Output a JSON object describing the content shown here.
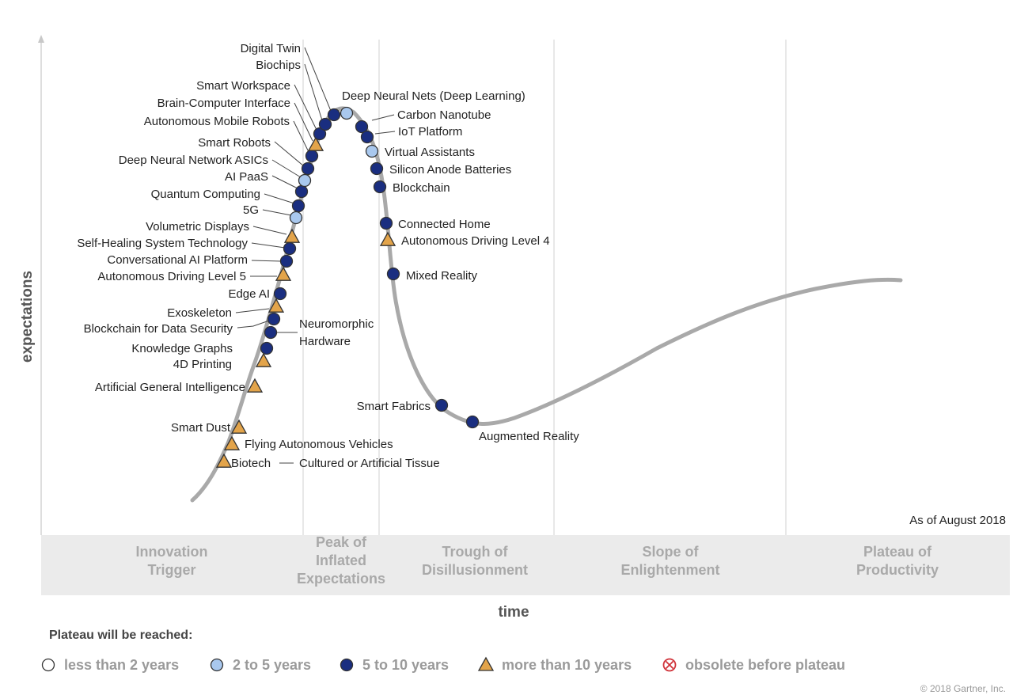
{
  "chart_data": {
    "type": "scatter",
    "ylabel": "expectations",
    "xlabel": "time",
    "as_of": "As of August 2018",
    "phases": [
      {
        "lines": [
          "Innovation",
          "Trigger"
        ]
      },
      {
        "lines": [
          "Peak of",
          "Inflated",
          "Expectations"
        ]
      },
      {
        "lines": [
          "Trough of",
          "Disillusionment"
        ]
      },
      {
        "lines": [
          "Slope of",
          "Enlightenment"
        ]
      },
      {
        "lines": [
          "Plateau of",
          "Productivity"
        ]
      }
    ],
    "legend": {
      "title": "Plateau will be reached:",
      "items": [
        {
          "key": "lt2",
          "label": "less than 2 years"
        },
        {
          "key": "2to5",
          "label": "2 to 5 years"
        },
        {
          "key": "5to10",
          "label": "5 to 10 years"
        },
        {
          "key": "gt10",
          "label": "more than 10 years"
        },
        {
          "key": "obsolete",
          "label": "obsolete before plateau"
        }
      ]
    },
    "colors": {
      "lt2": "#ffffff",
      "2to5": "#a9c8ee",
      "5to10": "#1a2e80",
      "gt10": "#e3a44a",
      "obsolete": "#d0333a",
      "curve": "#a9a9a9",
      "band": "#ebebeb"
    },
    "copyright": "© 2018 Gartner, Inc.",
    "points": [
      {
        "name": "Biotech",
        "label2": "Cultured or Artificial Tissue",
        "cat": "gt10"
      },
      {
        "name": "Flying Autonomous Vehicles",
        "cat": "gt10"
      },
      {
        "name": "Smart Dust",
        "cat": "gt10"
      },
      {
        "name": "Artificial General Intelligence",
        "cat": "gt10"
      },
      {
        "name": "4D Printing",
        "cat": "gt10"
      },
      {
        "name": "Knowledge Graphs",
        "cat": "5to10"
      },
      {
        "name": "Neuromorphic Hardware",
        "lines": [
          "Neuromorphic",
          "Hardware"
        ],
        "cat": "5to10"
      },
      {
        "name": "Blockchain for Data Security",
        "cat": "5to10"
      },
      {
        "name": "Exoskeleton",
        "cat": "gt10"
      },
      {
        "name": "Edge AI",
        "cat": "5to10"
      },
      {
        "name": "Autonomous Driving Level 5",
        "cat": "gt10"
      },
      {
        "name": "Conversational AI Platform",
        "cat": "5to10"
      },
      {
        "name": "Self-Healing System Technology",
        "cat": "5to10"
      },
      {
        "name": "Volumetric Displays",
        "cat": "gt10"
      },
      {
        "name": "5G",
        "cat": "2to5"
      },
      {
        "name": "Quantum Computing",
        "cat": "5to10"
      },
      {
        "name": "AI PaaS",
        "cat": "5to10"
      },
      {
        "name": "Deep Neural Network ASICs",
        "cat": "2to5"
      },
      {
        "name": "Smart Robots",
        "cat": "5to10"
      },
      {
        "name": "Autonomous Mobile Robots",
        "cat": "5to10"
      },
      {
        "name": "Brain-Computer Interface",
        "cat": "gt10"
      },
      {
        "name": "Smart Workspace",
        "cat": "5to10"
      },
      {
        "name": "Biochips",
        "cat": "5to10"
      },
      {
        "name": "Digital Twin",
        "cat": "5to10"
      },
      {
        "name": "Deep Neural Nets (Deep Learning)",
        "cat": "2to5"
      },
      {
        "name": "Carbon Nanotube",
        "cat": "5to10"
      },
      {
        "name": "IoT Platform",
        "cat": "5to10"
      },
      {
        "name": "Virtual Assistants",
        "cat": "2to5"
      },
      {
        "name": "Silicon Anode Batteries",
        "cat": "5to10"
      },
      {
        "name": "Blockchain",
        "cat": "5to10"
      },
      {
        "name": "Connected Home",
        "cat": "5to10"
      },
      {
        "name": "Autonomous Driving Level 4",
        "cat": "gt10"
      },
      {
        "name": "Mixed Reality",
        "cat": "5to10"
      },
      {
        "name": "Smart Fabrics",
        "cat": "5to10"
      },
      {
        "name": "Augmented Reality",
        "cat": "5to10"
      }
    ]
  }
}
